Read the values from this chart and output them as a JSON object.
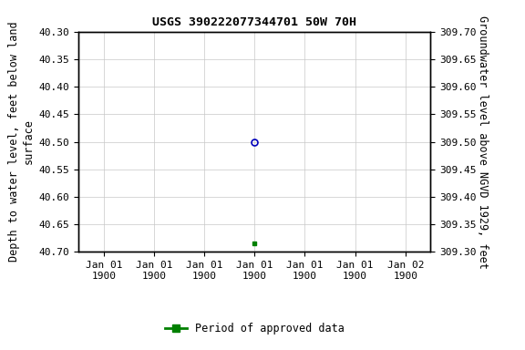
{
  "title": "USGS 390222077344701 50W 70H",
  "ylabel_left": "Depth to water level, feet below land\nsurface",
  "ylabel_right": "Groundwater level above NGVD 1929, feet",
  "ylim_left_top": 40.3,
  "ylim_left_bottom": 40.7,
  "ylim_right_top": 309.7,
  "ylim_right_bottom": 309.3,
  "yticks_left": [
    40.3,
    40.35,
    40.4,
    40.45,
    40.5,
    40.55,
    40.6,
    40.65,
    40.7
  ],
  "yticks_right": [
    309.7,
    309.65,
    309.6,
    309.55,
    309.5,
    309.45,
    309.4,
    309.35,
    309.3
  ],
  "point_blue_x": 3,
  "point_blue_y": 40.5,
  "point_green_x": 3,
  "point_green_y": 40.685,
  "xlim": [
    -0.5,
    6.5
  ],
  "xtick_positions": [
    0,
    1,
    2,
    3,
    4,
    5,
    6
  ],
  "xtick_labels": [
    "Jan 01\n1900",
    "Jan 01\n1900",
    "Jan 01\n1900",
    "Jan 01\n1900",
    "Jan 01\n1900",
    "Jan 01\n1900",
    "Jan 02\n1900"
  ],
  "bg_color": "#ffffff",
  "grid_color": "#c8c8c8",
  "point_blue_color": "#0000bb",
  "point_green_color": "#008000",
  "legend_label": "Period of approved data",
  "title_fontsize": 9.5,
  "axis_label_fontsize": 8.5,
  "tick_fontsize": 8,
  "legend_fontsize": 8.5
}
